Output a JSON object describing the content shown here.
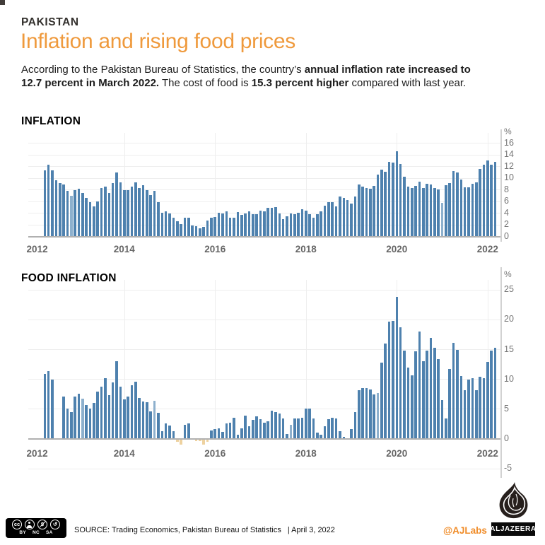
{
  "header": {
    "kicker": "PAKISTAN",
    "title": "Inflation and rising food prices",
    "subtitle_parts": [
      {
        "text": "According to the Pakistan Bureau of Statistics, the country’s ",
        "bold": false,
        "break_after": false
      },
      {
        "text": "annual inflation rate increased to",
        "bold": true,
        "break_after": true
      },
      {
        "text": "12.7 percent in March 2022.",
        "bold": true,
        "break_after": false
      },
      {
        "text": " The cost of food is ",
        "bold": false,
        "break_after": false
      },
      {
        "text": "15.3 percent higher",
        "bold": true,
        "break_after": false
      },
      {
        "text": " compared with last year.",
        "bold": false,
        "break_after": false
      }
    ]
  },
  "chart_data": [
    {
      "type": "bar",
      "title": "INFLATION",
      "unit": "%",
      "frequency": "monthly",
      "start_month": "2012-04",
      "end_month": "2022-03",
      "ylim": [
        0,
        16.8
      ],
      "grid": true,
      "y_ticks": [
        16,
        14,
        12,
        10,
        8,
        6,
        4,
        2,
        0
      ],
      "year_ticks": [
        {
          "label": "2012",
          "month_index": -2,
          "grid": false
        },
        {
          "label": "2014",
          "month_index": 21,
          "grid": true
        },
        {
          "label": "2016",
          "month_index": 45,
          "grid": true
        },
        {
          "label": "2018",
          "month_index": 69,
          "grid": true
        },
        {
          "label": "2020",
          "month_index": 93,
          "grid": true
        },
        {
          "label": "2022",
          "month_index": 117,
          "grid": true
        }
      ],
      "values": [
        11.3,
        12.3,
        11.3,
        9.6,
        9.1,
        8.8,
        7.7,
        6.9,
        7.9,
        8.1,
        7.4,
        6.6,
        5.8,
        5.1,
        5.9,
        8.3,
        8.5,
        7.4,
        9.1,
        10.9,
        9.2,
        7.9,
        7.9,
        8.5,
        9.2,
        8.3,
        8.7,
        7.9,
        7.0,
        7.7,
        5.8,
        4.0,
        4.3,
        3.9,
        3.2,
        2.5,
        2.1,
        3.2,
        3.2,
        1.8,
        1.7,
        1.3,
        1.6,
        2.7,
        3.2,
        3.3,
        4.0,
        3.9,
        4.2,
        3.2,
        3.2,
        4.1,
        3.6,
        3.9,
        4.2,
        3.8,
        3.7,
        4.4,
        4.2,
        4.9,
        4.8,
        5.0,
        3.9,
        2.9,
        3.4,
        3.9,
        3.8,
        4.0,
        4.6,
        4.4,
        3.8,
        3.2,
        3.7,
        4.2,
        5.2,
        5.8,
        5.8,
        5.1,
        6.8,
        6.5,
        6.2,
        5.6,
        6.8,
        8.8,
        8.5,
        8.3,
        8.1,
        8.6,
        10.5,
        11.4,
        11.0,
        12.7,
        12.6,
        14.6,
        12.4,
        10.2,
        8.5,
        8.2,
        8.6,
        9.3,
        8.2,
        9.0,
        8.9,
        8.3,
        8.0,
        5.7,
        8.7,
        9.1,
        11.1,
        10.9,
        9.7,
        8.4,
        8.4,
        9.0,
        9.2,
        11.5,
        12.3,
        13.0,
        12.2,
        12.7
      ],
      "light_indices": [
        7,
        105
      ]
    },
    {
      "type": "bar",
      "title": "FOOD INFLATION",
      "unit": "%",
      "frequency": "monthly",
      "start_month": "2012-04",
      "end_month": "2022-03",
      "ylim": [
        -5,
        26
      ],
      "grid": true,
      "y_ticks": [
        25,
        20,
        15,
        10,
        5,
        0,
        -5
      ],
      "year_ticks": [
        {
          "label": "2012",
          "month_index": -2,
          "grid": false
        },
        {
          "label": "2014",
          "month_index": 21,
          "grid": true
        },
        {
          "label": "2016",
          "month_index": 45,
          "grid": true
        },
        {
          "label": "2018",
          "month_index": 69,
          "grid": true
        },
        {
          "label": "2020",
          "month_index": 93,
          "grid": true
        },
        {
          "label": "2022",
          "month_index": 117,
          "grid": true
        }
      ],
      "values": [
        10.8,
        11.3,
        9.9,
        0.1,
        0.1,
        7.0,
        5.0,
        4.5,
        7.1,
        7.5,
        6.7,
        5.6,
        5.0,
        6.0,
        7.9,
        8.7,
        10.1,
        7.3,
        9.4,
        13.0,
        8.7,
        6.6,
        7.0,
        8.9,
        9.6,
        6.8,
        6.2,
        6.1,
        4.6,
        6.4,
        4.3,
        1.2,
        2.5,
        2.2,
        1.2,
        -0.4,
        -0.9,
        2.3,
        2.5,
        0.1,
        -0.3,
        -0.3,
        -0.9,
        -0.4,
        1.4,
        1.6,
        1.7,
        1.1,
        2.5,
        2.7,
        3.5,
        0.7,
        1.7,
        3.9,
        2.1,
        3.1,
        3.7,
        3.3,
        2.7,
        2.9,
        4.7,
        4.5,
        4.2,
        3.4,
        0.8,
        2.3,
        3.4,
        3.4,
        3.5,
        5.1,
        5.0,
        3.4,
        1.0,
        0.6,
        2.1,
        3.3,
        3.5,
        3.4,
        1.2,
        0.3,
        0.1,
        1.6,
        4.4,
        8.1,
        8.5,
        8.5,
        8.3,
        7.4,
        7.7,
        12.7,
        15.9,
        19.6,
        19.8,
        23.8,
        18.7,
        14.8,
        11.9,
        10.6,
        14.7,
        18.0,
        13.0,
        14.8,
        16.9,
        15.3,
        13.3,
        6.5,
        3.4,
        11.7,
        16.1,
        14.9,
        10.5,
        8.1,
        9.9,
        10.2,
        8.1,
        10.4,
        10.2,
        12.9,
        14.8,
        15.3
      ],
      "light_indices": [
        10,
        29,
        65,
        88
      ]
    }
  ],
  "colors": {
    "bar": "#4e81ae",
    "bar_light": "#8db0cd",
    "bar_negative": "#eed2a0",
    "accent_orange": "#ef9a3d",
    "grid": "#eeeeee",
    "baseline": "#b0b0b0",
    "axis_line": "#d2d2d2",
    "axis_text": "#757575",
    "year_text": "#666666"
  },
  "footer": {
    "license_icons": [
      "cc-icon",
      "attribution-person-icon",
      "non-commercial-dollar-icon",
      "share-alike-arrow-icon"
    ],
    "license_labels": [
      "BY",
      "NC",
      "SA"
    ],
    "sa_glyph": "↺",
    "source_label": "SOURCE: Trading Economics, Pakistan Bureau of Statistics",
    "date_label": "| April 3, 2022",
    "credit": "@AJLabs",
    "brand": "ALJAZEERA"
  }
}
